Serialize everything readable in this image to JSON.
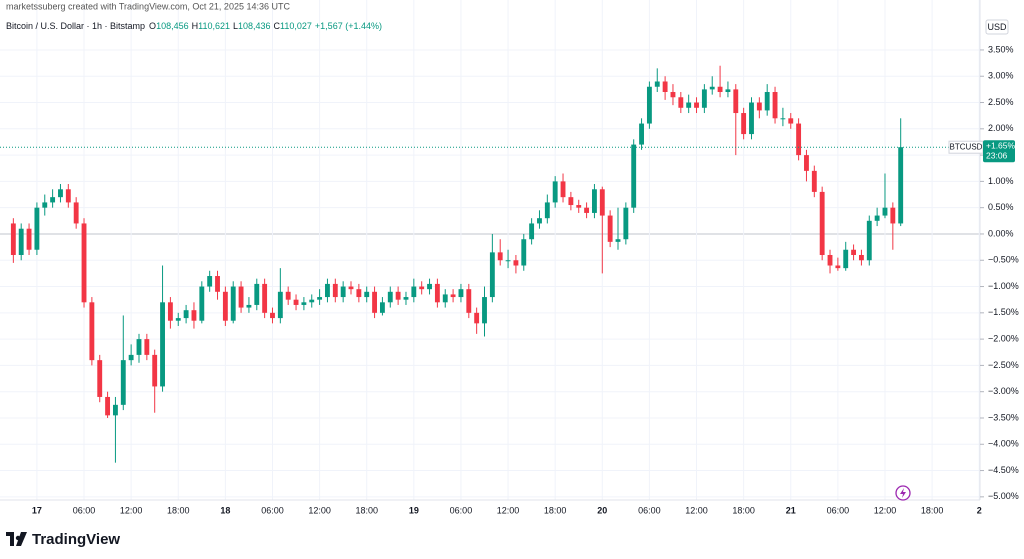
{
  "header": {
    "credit": "marketssuberg created with TradingView.com, Oct 21, 2025 14:36 UTC"
  },
  "legend": {
    "symbol": "Bitcoin / U.S. Dollar · 1h · Bitstamp",
    "fields": [
      {
        "label": "O",
        "value": "108,456"
      },
      {
        "label": "H",
        "value": "110,621"
      },
      {
        "label": "L",
        "value": "108,436"
      },
      {
        "label": "C",
        "value": "110,027"
      }
    ],
    "change": "+1,567 (+1.44%)"
  },
  "currency": "USD",
  "last_price": {
    "symbol": "BTCUSD",
    "value_label": "+1.65%",
    "countdown": "23:06"
  },
  "logo": "TradingView",
  "chart_data": {
    "type": "candlestick",
    "up_color": "#089981",
    "down_color": "#f23645",
    "grid": true,
    "open": [
      0.2,
      -0.4,
      0.1,
      -0.3,
      0.5,
      0.6,
      0.7,
      0.85,
      0.6,
      0.2,
      -1.3,
      -2.4,
      -3.1,
      -3.45,
      -3.25,
      -2.4,
      -2.3,
      -2.0,
      -2.3,
      -2.9,
      -1.3,
      -1.65,
      -1.6,
      -1.45,
      -1.65,
      -1.0,
      -0.8,
      -1.1,
      -1.65,
      -1.0,
      -1.4,
      -1.35,
      -0.95,
      -1.5,
      -1.6,
      -1.1,
      -1.25,
      -1.35,
      -1.3,
      -1.25,
      -1.2,
      -0.95,
      -1.2,
      -1.0,
      -1.05,
      -1.2,
      -1.1,
      -1.5,
      -1.3,
      -1.1,
      -1.25,
      -1.2,
      -1.0,
      -1.05,
      -0.95,
      -1.3,
      -1.15,
      -1.2,
      -1.05,
      -1.5,
      -1.7,
      -1.2,
      -0.35,
      -0.5,
      -0.5,
      -0.6,
      -0.1,
      0.2,
      0.3,
      0.6,
      1.0,
      0.7,
      0.55,
      0.5,
      0.4,
      0.85,
      0.35,
      -0.15,
      -0.1,
      0.5,
      1.7,
      2.1,
      2.8,
      2.9,
      2.7,
      2.6,
      2.4,
      2.5,
      2.4,
      2.75,
      2.8,
      2.7,
      2.75,
      2.3,
      1.9,
      2.5,
      2.35,
      2.7,
      2.2,
      2.2,
      2.1,
      1.5,
      1.2,
      0.8,
      -0.4,
      -0.6,
      -0.65,
      -0.3,
      -0.4,
      -0.5,
      0.25,
      0.35,
      0.5,
      0.2
    ],
    "high": [
      0.3,
      0.2,
      0.2,
      0.6,
      0.75,
      0.85,
      0.95,
      0.95,
      0.7,
      0.3,
      -1.2,
      -2.3,
      -3.0,
      -3.1,
      -1.55,
      -2.1,
      -1.9,
      -1.9,
      -2.2,
      -0.6,
      -1.2,
      -1.5,
      -1.35,
      -1.3,
      -0.9,
      -0.7,
      -0.7,
      -1.0,
      -0.9,
      -0.9,
      -1.2,
      -0.85,
      -0.85,
      -1.4,
      -0.65,
      -1.0,
      -1.15,
      -1.2,
      -1.15,
      -1.05,
      -0.85,
      -0.85,
      -0.9,
      -0.9,
      -0.95,
      -1.0,
      -1.0,
      -1.2,
      -1.0,
      -1.0,
      -1.1,
      -0.85,
      -0.9,
      -0.85,
      -0.85,
      -1.05,
      -1.05,
      -0.95,
      -0.95,
      -1.4,
      -1.0,
      0.0,
      -0.1,
      -0.3,
      -0.4,
      0.0,
      0.3,
      0.45,
      0.75,
      1.1,
      1.15,
      0.8,
      0.65,
      0.6,
      0.95,
      0.9,
      0.45,
      0.5,
      0.6,
      1.8,
      2.2,
      2.9,
      3.15,
      3.0,
      2.85,
      2.7,
      2.65,
      2.6,
      2.85,
      3.0,
      3.2,
      2.9,
      2.85,
      2.4,
      2.6,
      2.6,
      2.85,
      2.8,
      2.4,
      2.3,
      2.2,
      1.6,
      1.3,
      0.9,
      -0.3,
      -0.45,
      -0.15,
      -0.2,
      -0.3,
      0.35,
      0.5,
      1.15,
      0.6,
      2.2
    ],
    "low": [
      -0.55,
      -0.5,
      -0.4,
      -0.4,
      0.35,
      0.5,
      0.6,
      0.5,
      0.1,
      -1.4,
      -2.5,
      -3.2,
      -3.5,
      -4.35,
      -3.35,
      -2.5,
      -2.45,
      -2.4,
      -3.4,
      -3.0,
      -1.8,
      -1.75,
      -1.7,
      -1.8,
      -1.7,
      -1.1,
      -1.25,
      -1.75,
      -1.7,
      -1.5,
      -1.5,
      -1.45,
      -1.6,
      -1.7,
      -1.7,
      -1.35,
      -1.45,
      -1.45,
      -1.4,
      -1.35,
      -1.3,
      -1.3,
      -1.3,
      -1.15,
      -1.3,
      -1.3,
      -1.6,
      -1.55,
      -1.4,
      -1.35,
      -1.35,
      -1.3,
      -1.15,
      -1.15,
      -1.4,
      -1.4,
      -1.3,
      -1.3,
      -1.6,
      -1.9,
      -1.95,
      -1.3,
      -0.6,
      -0.65,
      -0.75,
      -0.7,
      -0.2,
      0.1,
      0.2,
      0.5,
      0.6,
      0.45,
      0.4,
      0.3,
      0.3,
      -0.75,
      -0.25,
      -0.3,
      -0.2,
      0.4,
      1.6,
      2.0,
      2.7,
      2.55,
      2.45,
      2.3,
      2.3,
      2.3,
      2.3,
      2.65,
      2.6,
      2.6,
      1.5,
      1.8,
      1.8,
      2.2,
      2.25,
      2.1,
      2.05,
      2.0,
      1.4,
      1.0,
      0.7,
      -0.5,
      -0.75,
      -0.7,
      -0.7,
      -0.5,
      -0.6,
      -0.6,
      0.15,
      0.3,
      -0.3,
      0.15
    ],
    "close": [
      -0.4,
      0.1,
      -0.3,
      0.5,
      0.6,
      0.7,
      0.85,
      0.6,
      0.2,
      -1.3,
      -2.4,
      -3.1,
      -3.45,
      -3.25,
      -2.4,
      -2.3,
      -2.0,
      -2.3,
      -2.9,
      -1.3,
      -1.65,
      -1.6,
      -1.45,
      -1.65,
      -1.0,
      -0.8,
      -1.1,
      -1.65,
      -1.0,
      -1.4,
      -1.35,
      -0.95,
      -1.5,
      -1.6,
      -1.1,
      -1.25,
      -1.35,
      -1.3,
      -1.25,
      -1.2,
      -0.95,
      -1.2,
      -1.0,
      -1.05,
      -1.2,
      -1.1,
      -1.5,
      -1.3,
      -1.1,
      -1.25,
      -1.2,
      -1.0,
      -1.05,
      -0.95,
      -1.3,
      -1.15,
      -1.2,
      -1.05,
      -1.5,
      -1.7,
      -1.2,
      -0.35,
      -0.5,
      -0.5,
      -0.6,
      -0.1,
      0.2,
      0.3,
      0.6,
      1.0,
      0.7,
      0.55,
      0.5,
      0.4,
      0.85,
      0.35,
      -0.15,
      -0.1,
      0.5,
      1.7,
      2.1,
      2.8,
      2.9,
      2.7,
      2.6,
      2.4,
      2.5,
      2.4,
      2.75,
      2.8,
      2.7,
      2.75,
      2.3,
      1.9,
      2.5,
      2.35,
      2.7,
      2.2,
      2.2,
      2.1,
      1.5,
      1.2,
      0.8,
      -0.4,
      -0.6,
      -0.65,
      -0.3,
      -0.4,
      -0.5,
      0.25,
      0.35,
      0.5,
      0.2,
      1.65
    ],
    "xlim": [
      -1.7,
      123.1
    ],
    "xticks": [
      {
        "value": 3,
        "label": "17"
      },
      {
        "value": 9,
        "label": "06:00"
      },
      {
        "value": 15,
        "label": "12:00"
      },
      {
        "value": 21,
        "label": "18:00"
      },
      {
        "value": 27,
        "label": "18"
      },
      {
        "value": 33,
        "label": "06:00"
      },
      {
        "value": 39,
        "label": "12:00"
      },
      {
        "value": 45,
        "label": "18:00"
      },
      {
        "value": 51,
        "label": "19"
      },
      {
        "value": 57,
        "label": "06:00"
      },
      {
        "value": 63,
        "label": "12:00"
      },
      {
        "value": 69,
        "label": "18:00"
      },
      {
        "value": 75,
        "label": "20"
      },
      {
        "value": 81,
        "label": "06:00"
      },
      {
        "value": 87,
        "label": "12:00"
      },
      {
        "value": 93,
        "label": "18:00"
      },
      {
        "value": 99,
        "label": "21"
      },
      {
        "value": 105,
        "label": "06:00"
      },
      {
        "value": 111,
        "label": "12:00"
      },
      {
        "value": 117,
        "label": "18:00"
      },
      {
        "value": 123,
        "label": "2"
      }
    ],
    "ylim": [
      -5.06,
      4.45
    ],
    "yticks": [
      {
        "value": 3.5,
        "label": "3.50%"
      },
      {
        "value": 3,
        "label": "3.00%"
      },
      {
        "value": 2.5,
        "label": "2.50%"
      },
      {
        "value": 2,
        "label": "2.00%"
      },
      {
        "value": 1.5,
        "label": "1.50%"
      },
      {
        "value": 1,
        "label": "1.00%"
      },
      {
        "value": 0.5,
        "label": "0.50%"
      },
      {
        "value": 0,
        "label": "0.00%"
      },
      {
        "value": -0.5,
        "label": "−0.50%"
      },
      {
        "value": -1,
        "label": "−1.00%"
      },
      {
        "value": -1.5,
        "label": "−1.50%"
      },
      {
        "value": -2,
        "label": "−2.00%"
      },
      {
        "value": -2.5,
        "label": "−2.50%"
      },
      {
        "value": -3,
        "label": "−3.00%"
      },
      {
        "value": -3.5,
        "label": "−3.50%"
      },
      {
        "value": -4,
        "label": "−4.00%"
      },
      {
        "value": -4.5,
        "label": "−4.50%"
      },
      {
        "value": -5,
        "label": "−5.00%"
      }
    ]
  }
}
